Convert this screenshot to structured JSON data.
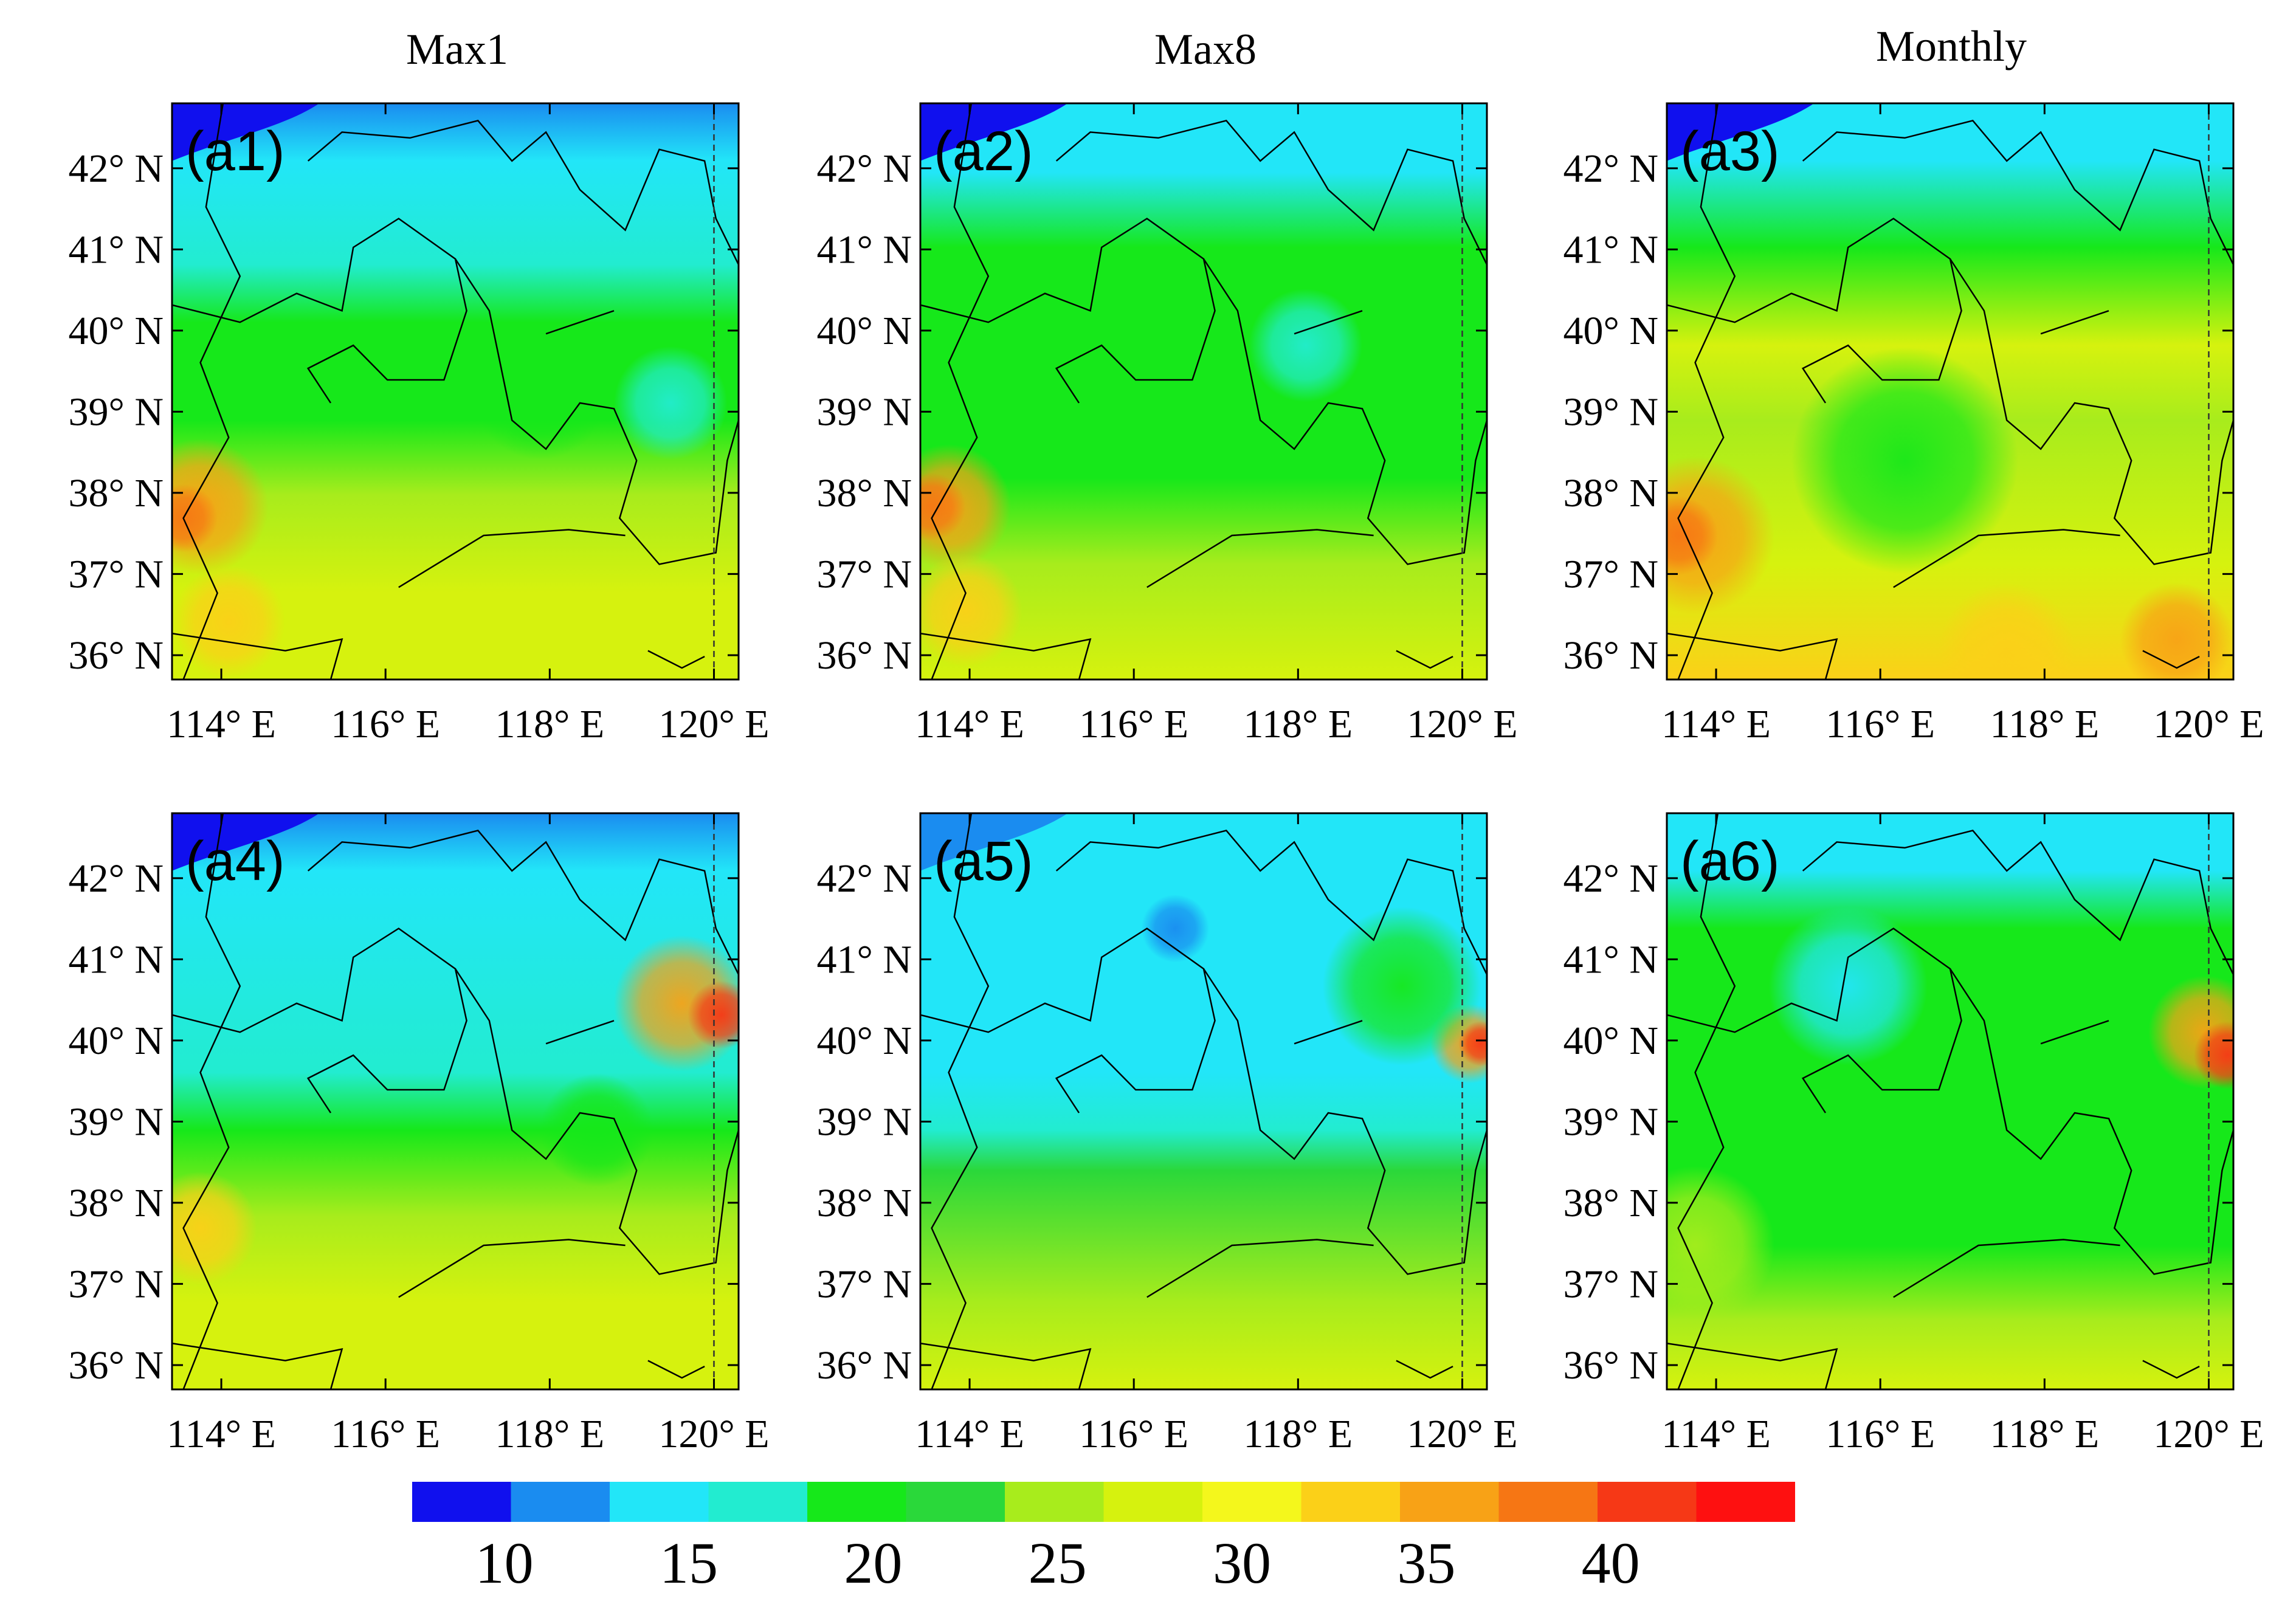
{
  "column_titles": [
    "Max1",
    "Max8",
    "Monthly"
  ],
  "lat_labels": [
    "42° N",
    "41° N",
    "40° N",
    "39° N",
    "38° N",
    "37° N",
    "36° N"
  ],
  "lon_labels": [
    "114° E",
    "116° E",
    "118° E",
    "120° E"
  ],
  "colorbar": {
    "labels": [
      "10",
      "15",
      "20",
      "25",
      "30",
      "35",
      "40"
    ],
    "colors": [
      "#1010ee",
      "#1a8cf0",
      "#22e6f8",
      "#22ecd0",
      "#16e81a",
      "#2ad83a",
      "#a8ec1c",
      "#d6f20e",
      "#f4f71c",
      "#fbd018",
      "#f8a216",
      "#f67614",
      "#f63816",
      "#fe1010"
    ]
  },
  "chart_data": {
    "type": "heatmap",
    "title": "",
    "variable_units": "",
    "colorbar_range": [
      7.5,
      45
    ],
    "colorbar_step": 2.5,
    "lon_range": [
      113.4,
      120.3
    ],
    "lat_range": [
      35.7,
      42.8
    ],
    "lon_ticks": [
      114,
      116,
      118,
      120
    ],
    "lat_ticks": [
      36,
      37,
      38,
      39,
      40,
      41,
      42
    ],
    "panels": [
      {
        "label": "(a1)",
        "column": "Max1",
        "row": 1,
        "stops": [
          [
            0.0,
            "#1a8cf0"
          ],
          [
            0.1,
            "#22e6f8"
          ],
          [
            0.28,
            "#22ecd0"
          ],
          [
            0.38,
            "#16e81a"
          ],
          [
            0.55,
            "#16e81a"
          ],
          [
            0.68,
            "#a8ec1c"
          ],
          [
            0.85,
            "#d6f20e"
          ],
          [
            1.0,
            "#d6f20e"
          ]
        ],
        "blobs": [
          {
            "cx": 0.05,
            "cy": 0.7,
            "r": 0.12,
            "color": "#f8a216"
          },
          {
            "cx": 0.02,
            "cy": 0.72,
            "r": 0.06,
            "color": "#f67614"
          },
          {
            "cx": 0.1,
            "cy": 0.9,
            "r": 0.1,
            "color": "#fbd018"
          },
          {
            "cx": 0.65,
            "cy": 0.5,
            "r": 0.12,
            "color": "#16e81a"
          },
          {
            "cx": 0.88,
            "cy": 0.52,
            "r": 0.1,
            "color": "#22ecd0"
          }
        ],
        "corner": "#1010ee"
      },
      {
        "label": "(a2)",
        "column": "Max8",
        "row": 1,
        "stops": [
          [
            0.0,
            "#22e6f8"
          ],
          [
            0.12,
            "#22e6f8"
          ],
          [
            0.25,
            "#16e81a"
          ],
          [
            0.65,
            "#16e81a"
          ],
          [
            0.8,
            "#a8ec1c"
          ],
          [
            1.0,
            "#d6f20e"
          ]
        ],
        "blobs": [
          {
            "cx": 0.05,
            "cy": 0.7,
            "r": 0.11,
            "color": "#f8a216"
          },
          {
            "cx": 0.02,
            "cy": 0.7,
            "r": 0.06,
            "color": "#f67614"
          },
          {
            "cx": 0.68,
            "cy": 0.42,
            "r": 0.1,
            "color": "#22ecd0"
          },
          {
            "cx": 0.08,
            "cy": 0.88,
            "r": 0.1,
            "color": "#fbd018"
          }
        ],
        "corner": "#1010ee"
      },
      {
        "label": "(a3)",
        "column": "Monthly",
        "row": 1,
        "stops": [
          [
            0.0,
            "#22e6f8"
          ],
          [
            0.1,
            "#22e6f8"
          ],
          [
            0.25,
            "#16e81a"
          ],
          [
            0.42,
            "#d6f20e"
          ],
          [
            0.55,
            "#a8ec1c"
          ],
          [
            0.8,
            "#d6f20e"
          ],
          [
            1.0,
            "#fbd018"
          ]
        ],
        "blobs": [
          {
            "cx": 0.05,
            "cy": 0.75,
            "r": 0.14,
            "color": "#f8a216"
          },
          {
            "cx": 0.02,
            "cy": 0.75,
            "r": 0.07,
            "color": "#f67614"
          },
          {
            "cx": 0.42,
            "cy": 0.62,
            "r": 0.2,
            "color": "#16e81a"
          },
          {
            "cx": 0.9,
            "cy": 0.93,
            "r": 0.1,
            "color": "#f8a216"
          },
          {
            "cx": 0.6,
            "cy": 0.95,
            "r": 0.12,
            "color": "#fbd018"
          }
        ],
        "corner": "#1010ee"
      },
      {
        "label": "(a4)",
        "column": "Max1",
        "row": 2,
        "stops": [
          [
            0.0,
            "#1a8cf0"
          ],
          [
            0.1,
            "#22e6f8"
          ],
          [
            0.45,
            "#22ecd0"
          ],
          [
            0.55,
            "#16e81a"
          ],
          [
            0.7,
            "#a8ec1c"
          ],
          [
            0.85,
            "#d6f20e"
          ],
          [
            1.0,
            "#d6f20e"
          ]
        ],
        "blobs": [
          {
            "cx": 0.9,
            "cy": 0.33,
            "r": 0.12,
            "color": "#f8a216"
          },
          {
            "cx": 0.97,
            "cy": 0.35,
            "r": 0.06,
            "color": "#f63816"
          },
          {
            "cx": 0.05,
            "cy": 0.72,
            "r": 0.1,
            "color": "#fbd018"
          },
          {
            "cx": 0.75,
            "cy": 0.55,
            "r": 0.1,
            "color": "#16e81a"
          }
        ],
        "corner": "#1010ee"
      },
      {
        "label": "(a5)",
        "column": "Max8",
        "row": 2,
        "stops": [
          [
            0.0,
            "#22e6f8"
          ],
          [
            0.45,
            "#22e6f8"
          ],
          [
            0.55,
            "#22ecd0"
          ],
          [
            0.62,
            "#2ad83a"
          ],
          [
            0.85,
            "#a8ec1c"
          ],
          [
            1.0,
            "#d6f20e"
          ]
        ],
        "blobs": [
          {
            "cx": 0.97,
            "cy": 0.4,
            "r": 0.07,
            "color": "#f8a216"
          },
          {
            "cx": 0.99,
            "cy": 0.4,
            "r": 0.04,
            "color": "#f63816"
          },
          {
            "cx": 0.85,
            "cy": 0.3,
            "r": 0.14,
            "color": "#16e81a"
          },
          {
            "cx": 0.45,
            "cy": 0.2,
            "r": 0.06,
            "color": "#1a8cf0"
          }
        ],
        "corner": "#1a8cf0"
      },
      {
        "label": "(a6)",
        "column": "Monthly",
        "row": 2,
        "stops": [
          [
            0.0,
            "#22e6f8"
          ],
          [
            0.1,
            "#22e6f8"
          ],
          [
            0.2,
            "#16e81a"
          ],
          [
            0.35,
            "#16e81a"
          ],
          [
            0.75,
            "#16e81a"
          ],
          [
            0.88,
            "#a8ec1c"
          ],
          [
            1.0,
            "#d6f20e"
          ]
        ],
        "blobs": [
          {
            "cx": 0.95,
            "cy": 0.38,
            "r": 0.1,
            "color": "#f8a216"
          },
          {
            "cx": 0.99,
            "cy": 0.42,
            "r": 0.06,
            "color": "#f63816"
          },
          {
            "cx": 0.05,
            "cy": 0.75,
            "r": 0.14,
            "color": "#a8ec1c"
          },
          {
            "cx": 0.32,
            "cy": 0.3,
            "r": 0.14,
            "color": "#22e6f8"
          }
        ],
        "corner": "#22e6f8"
      }
    ]
  }
}
